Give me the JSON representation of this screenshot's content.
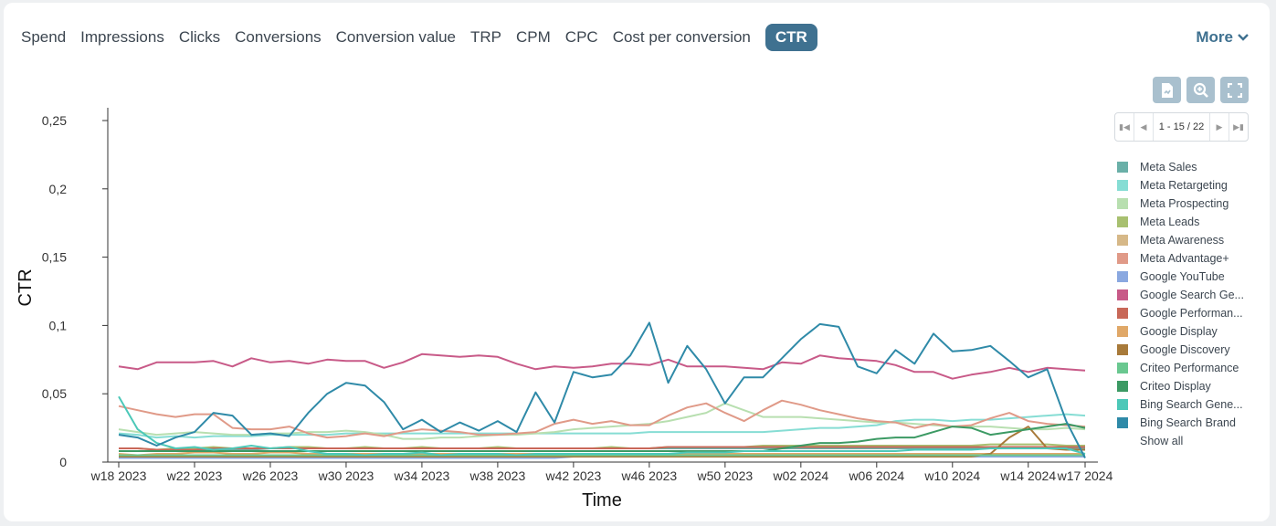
{
  "tabs": [
    "Spend",
    "Impressions",
    "Clicks",
    "Conversions",
    "Conversion value",
    "TRP",
    "CPM",
    "CPC",
    "Cost per conversion",
    "CTR"
  ],
  "active_tab": "CTR",
  "more_label": "More",
  "pager": {
    "label": "1 - 15 / 22"
  },
  "legend": {
    "show_all": "Show all"
  },
  "chart_data": {
    "type": "line",
    "xlabel": "Time",
    "ylabel": "CTR",
    "ylim": [
      0,
      0.25
    ],
    "yticks": [
      "0",
      "0,05",
      "0,1",
      "0,15",
      "0,2",
      "0,25"
    ],
    "ytick_values": [
      0,
      0.05,
      0.1,
      0.15,
      0.2,
      0.25
    ],
    "xtick_labels": [
      "w18 2023",
      "w22 2023",
      "w26 2023",
      "w30 2023",
      "w34 2023",
      "w38 2023",
      "w42 2023",
      "w46 2023",
      "w50 2023",
      "w02 2024",
      "w06 2024",
      "w10 2024",
      "w14 2024",
      "w17 2024"
    ],
    "xtick_index": [
      0,
      4,
      8,
      12,
      16,
      20,
      24,
      28,
      32,
      36,
      40,
      44,
      48,
      51
    ],
    "series": [
      {
        "name": "Meta Sales",
        "color": "#6ab0a8",
        "values": [
          0.008,
          0.008,
          0.008,
          0.009,
          0.009,
          0.009,
          0.009,
          0.009,
          0.01,
          0.01,
          0.01,
          0.01,
          0.01,
          0.01,
          0.01,
          0.01,
          0.01,
          0.01,
          0.01,
          0.01,
          0.01,
          0.01,
          0.01,
          0.01,
          0.01,
          0.01,
          0.01,
          0.01,
          0.01,
          0.01,
          0.01,
          0.01,
          0.01,
          0.01,
          0.01,
          0.01,
          0.01,
          0.01,
          0.01,
          0.01,
          0.01,
          0.01,
          0.01,
          0.01,
          0.01,
          0.01,
          0.01,
          0.01,
          0.01,
          0.01,
          0.01,
          0.01
        ]
      },
      {
        "name": "Meta Retargeting",
        "color": "#86ddd4",
        "values": [
          0.021,
          0.02,
          0.018,
          0.019,
          0.018,
          0.019,
          0.019,
          0.019,
          0.02,
          0.02,
          0.02,
          0.02,
          0.021,
          0.021,
          0.021,
          0.021,
          0.021,
          0.021,
          0.021,
          0.021,
          0.021,
          0.021,
          0.021,
          0.021,
          0.021,
          0.021,
          0.021,
          0.021,
          0.022,
          0.022,
          0.022,
          0.022,
          0.022,
          0.022,
          0.022,
          0.023,
          0.024,
          0.025,
          0.025,
          0.026,
          0.027,
          0.03,
          0.031,
          0.031,
          0.03,
          0.031,
          0.031,
          0.032,
          0.033,
          0.034,
          0.035,
          0.034
        ]
      },
      {
        "name": "Meta Prospecting",
        "color": "#b8dfb0",
        "values": [
          0.024,
          0.022,
          0.02,
          0.021,
          0.022,
          0.021,
          0.02,
          0.02,
          0.021,
          0.021,
          0.022,
          0.022,
          0.023,
          0.022,
          0.02,
          0.017,
          0.017,
          0.018,
          0.018,
          0.019,
          0.02,
          0.02,
          0.021,
          0.022,
          0.024,
          0.025,
          0.026,
          0.027,
          0.028,
          0.03,
          0.033,
          0.036,
          0.043,
          0.038,
          0.033,
          0.033,
          0.033,
          0.032,
          0.031,
          0.03,
          0.029,
          0.029,
          0.028,
          0.027,
          0.026,
          0.026,
          0.026,
          0.025,
          0.024,
          0.024,
          0.025,
          0.024
        ]
      },
      {
        "name": "Meta Leads",
        "color": "#a8c070",
        "values": [
          0.01,
          0.01,
          0.009,
          0.01,
          0.01,
          0.011,
          0.01,
          0.01,
          0.01,
          0.011,
          0.011,
          0.01,
          0.01,
          0.011,
          0.01,
          0.01,
          0.011,
          0.01,
          0.01,
          0.01,
          0.011,
          0.01,
          0.01,
          0.01,
          0.01,
          0.01,
          0.011,
          0.01,
          0.01,
          0.011,
          0.011,
          0.011,
          0.011,
          0.011,
          0.012,
          0.012,
          0.012,
          0.012,
          0.012,
          0.012,
          0.012,
          0.012,
          0.012,
          0.012,
          0.012,
          0.012,
          0.013,
          0.013,
          0.013,
          0.013,
          0.012,
          0.012
        ]
      },
      {
        "name": "Meta Awareness",
        "color": "#d6b888",
        "values": [
          0.004,
          0.004,
          0.004,
          0.004,
          0.005,
          0.005,
          0.005,
          0.005,
          0.005,
          0.005,
          0.005,
          0.005,
          0.005,
          0.005,
          0.005,
          0.005,
          0.005,
          0.005,
          0.005,
          0.005,
          0.005,
          0.005,
          0.005,
          0.005,
          0.005,
          0.005,
          0.005,
          0.005,
          0.005,
          0.005,
          0.005,
          0.005,
          0.005,
          0.005,
          0.005,
          0.005,
          0.005,
          0.005,
          0.005,
          0.005,
          0.005,
          0.005,
          0.005,
          0.005,
          0.005,
          0.005,
          0.005,
          0.005,
          0.005,
          0.005,
          0.005,
          0.005
        ]
      },
      {
        "name": "Meta Advantage+",
        "color": "#e09a88",
        "values": [
          0.041,
          0.038,
          0.035,
          0.033,
          0.035,
          0.035,
          0.025,
          0.024,
          0.024,
          0.026,
          0.021,
          0.018,
          0.019,
          0.021,
          0.019,
          0.022,
          0.024,
          0.023,
          0.022,
          0.02,
          0.02,
          0.021,
          0.022,
          0.028,
          0.031,
          0.028,
          0.03,
          0.027,
          0.027,
          0.034,
          0.04,
          0.043,
          0.036,
          0.03,
          0.038,
          0.045,
          0.042,
          0.038,
          0.035,
          0.032,
          0.03,
          0.029,
          0.025,
          0.028,
          0.026,
          0.027,
          0.032,
          0.036,
          0.03,
          0.028,
          0.027,
          0.026
        ]
      },
      {
        "name": "Google YouTube",
        "color": "#8aa8e0",
        "values": [
          0.003,
          0.003,
          0.003,
          0.003,
          0.003,
          0.003,
          0.003,
          0.003,
          0.003,
          0.003,
          0.003,
          0.003,
          0.003,
          0.003,
          0.003,
          0.003,
          0.003,
          0.003,
          0.003,
          0.003,
          0.003,
          0.003,
          0.003,
          0.003,
          0.004,
          0.004,
          0.004,
          0.004,
          0.004,
          0.004,
          0.004,
          0.004,
          0.004,
          0.004,
          0.004,
          0.004,
          0.004,
          0.004,
          0.004,
          0.004,
          0.004,
          0.004,
          0.004,
          0.004,
          0.004,
          0.004,
          0.004,
          0.004,
          0.004,
          0.004,
          0.004,
          0.004
        ]
      },
      {
        "name": "Google Search Ge...",
        "color": "#c85a88",
        "values": [
          0.07,
          0.068,
          0.073,
          0.073,
          0.073,
          0.074,
          0.07,
          0.076,
          0.073,
          0.074,
          0.072,
          0.075,
          0.074,
          0.074,
          0.069,
          0.073,
          0.079,
          0.078,
          0.077,
          0.078,
          0.077,
          0.072,
          0.068,
          0.07,
          0.069,
          0.07,
          0.072,
          0.072,
          0.071,
          0.075,
          0.07,
          0.07,
          0.07,
          0.069,
          0.068,
          0.073,
          0.072,
          0.078,
          0.076,
          0.075,
          0.074,
          0.071,
          0.066,
          0.066,
          0.061,
          0.064,
          0.066,
          0.069,
          0.066,
          0.069,
          0.068,
          0.067
        ]
      },
      {
        "name": "Google Performan...",
        "color": "#c86858",
        "values": [
          0.01,
          0.01,
          0.009,
          0.009,
          0.009,
          0.01,
          0.01,
          0.01,
          0.01,
          0.01,
          0.01,
          0.01,
          0.01,
          0.01,
          0.01,
          0.01,
          0.01,
          0.01,
          0.01,
          0.01,
          0.01,
          0.01,
          0.01,
          0.01,
          0.01,
          0.01,
          0.01,
          0.01,
          0.01,
          0.011,
          0.011,
          0.011,
          0.011,
          0.011,
          0.011,
          0.011,
          0.011,
          0.011,
          0.011,
          0.011,
          0.011,
          0.011,
          0.011,
          0.011,
          0.011,
          0.011,
          0.011,
          0.011,
          0.011,
          0.011,
          0.011,
          0.011
        ]
      },
      {
        "name": "Google Display",
        "color": "#e0a868",
        "values": [
          0.006,
          0.005,
          0.006,
          0.006,
          0.007,
          0.007,
          0.006,
          0.006,
          0.007,
          0.007,
          0.006,
          0.006,
          0.006,
          0.006,
          0.006,
          0.006,
          0.006,
          0.006,
          0.006,
          0.006,
          0.006,
          0.006,
          0.006,
          0.006,
          0.006,
          0.006,
          0.006,
          0.006,
          0.006,
          0.006,
          0.006,
          0.006,
          0.006,
          0.006,
          0.006,
          0.006,
          0.006,
          0.006,
          0.006,
          0.006,
          0.006,
          0.006,
          0.006,
          0.006,
          0.006,
          0.006,
          0.006,
          0.006,
          0.006,
          0.006,
          0.006,
          0.006
        ]
      },
      {
        "name": "Google Discovery",
        "color": "#a87a3a",
        "values": [
          0.004,
          0.004,
          0.004,
          0.004,
          0.004,
          0.004,
          0.004,
          0.004,
          0.004,
          0.004,
          0.004,
          0.004,
          0.004,
          0.004,
          0.004,
          0.004,
          0.004,
          0.004,
          0.004,
          0.004,
          0.004,
          0.004,
          0.004,
          0.004,
          0.004,
          0.004,
          0.004,
          0.004,
          0.004,
          0.004,
          0.004,
          0.004,
          0.004,
          0.004,
          0.004,
          0.004,
          0.004,
          0.004,
          0.004,
          0.004,
          0.004,
          0.004,
          0.004,
          0.004,
          0.004,
          0.004,
          0.006,
          0.018,
          0.026,
          0.01,
          0.009,
          0.009
        ]
      },
      {
        "name": "Criteo Performance",
        "color": "#6ac890",
        "values": [
          0.005,
          0.005,
          0.005,
          0.005,
          0.005,
          0.005,
          0.005,
          0.005,
          0.005,
          0.005,
          0.005,
          0.005,
          0.005,
          0.005,
          0.005,
          0.005,
          0.005,
          0.005,
          0.005,
          0.005,
          0.005,
          0.005,
          0.005,
          0.005,
          0.005,
          0.005,
          0.005,
          0.005,
          0.005,
          0.005,
          0.005,
          0.005,
          0.005,
          0.005,
          0.005,
          0.005,
          0.005,
          0.005,
          0.005,
          0.005,
          0.005,
          0.005,
          0.005,
          0.005,
          0.005,
          0.005,
          0.005,
          0.005,
          0.005,
          0.005,
          0.005,
          0.005
        ]
      },
      {
        "name": "Criteo Display",
        "color": "#3c9a64",
        "values": [
          0.008,
          0.008,
          0.008,
          0.008,
          0.008,
          0.008,
          0.008,
          0.008,
          0.008,
          0.008,
          0.008,
          0.008,
          0.008,
          0.008,
          0.008,
          0.008,
          0.008,
          0.008,
          0.008,
          0.008,
          0.008,
          0.008,
          0.008,
          0.008,
          0.008,
          0.008,
          0.008,
          0.008,
          0.008,
          0.008,
          0.008,
          0.008,
          0.008,
          0.008,
          0.008,
          0.01,
          0.012,
          0.014,
          0.014,
          0.015,
          0.017,
          0.018,
          0.018,
          0.022,
          0.026,
          0.025,
          0.02,
          0.022,
          0.024,
          0.026,
          0.028,
          0.025
        ]
      },
      {
        "name": "Bing Search Gene...",
        "color": "#4cc8b8",
        "values": [
          0.048,
          0.024,
          0.014,
          0.01,
          0.011,
          0.009,
          0.01,
          0.012,
          0.01,
          0.011,
          0.008,
          0.006,
          0.006,
          0.005,
          0.006,
          0.006,
          0.007,
          0.005,
          0.006,
          0.006,
          0.006,
          0.005,
          0.006,
          0.006,
          0.006,
          0.006,
          0.006,
          0.006,
          0.006,
          0.006,
          0.007,
          0.007,
          0.007,
          0.008,
          0.008,
          0.008,
          0.008,
          0.008,
          0.008,
          0.008,
          0.008,
          0.008,
          0.009,
          0.009,
          0.009,
          0.009,
          0.01,
          0.01,
          0.01,
          0.01,
          0.01,
          0.006
        ]
      },
      {
        "name": "Bing Search Brand",
        "color": "#2f8aa8",
        "values": [
          0.02,
          0.018,
          0.012,
          0.018,
          0.022,
          0.036,
          0.034,
          0.02,
          0.021,
          0.019,
          0.036,
          0.05,
          0.058,
          0.056,
          0.044,
          0.024,
          0.031,
          0.022,
          0.029,
          0.023,
          0.03,
          0.022,
          0.051,
          0.029,
          0.066,
          0.062,
          0.064,
          0.078,
          0.102,
          0.058,
          0.085,
          0.068,
          0.043,
          0.062,
          0.062,
          0.076,
          0.09,
          0.101,
          0.099,
          0.07,
          0.065,
          0.082,
          0.072,
          0.094,
          0.081,
          0.082,
          0.085,
          0.074,
          0.062,
          0.068,
          0.03,
          0.003
        ]
      }
    ]
  }
}
